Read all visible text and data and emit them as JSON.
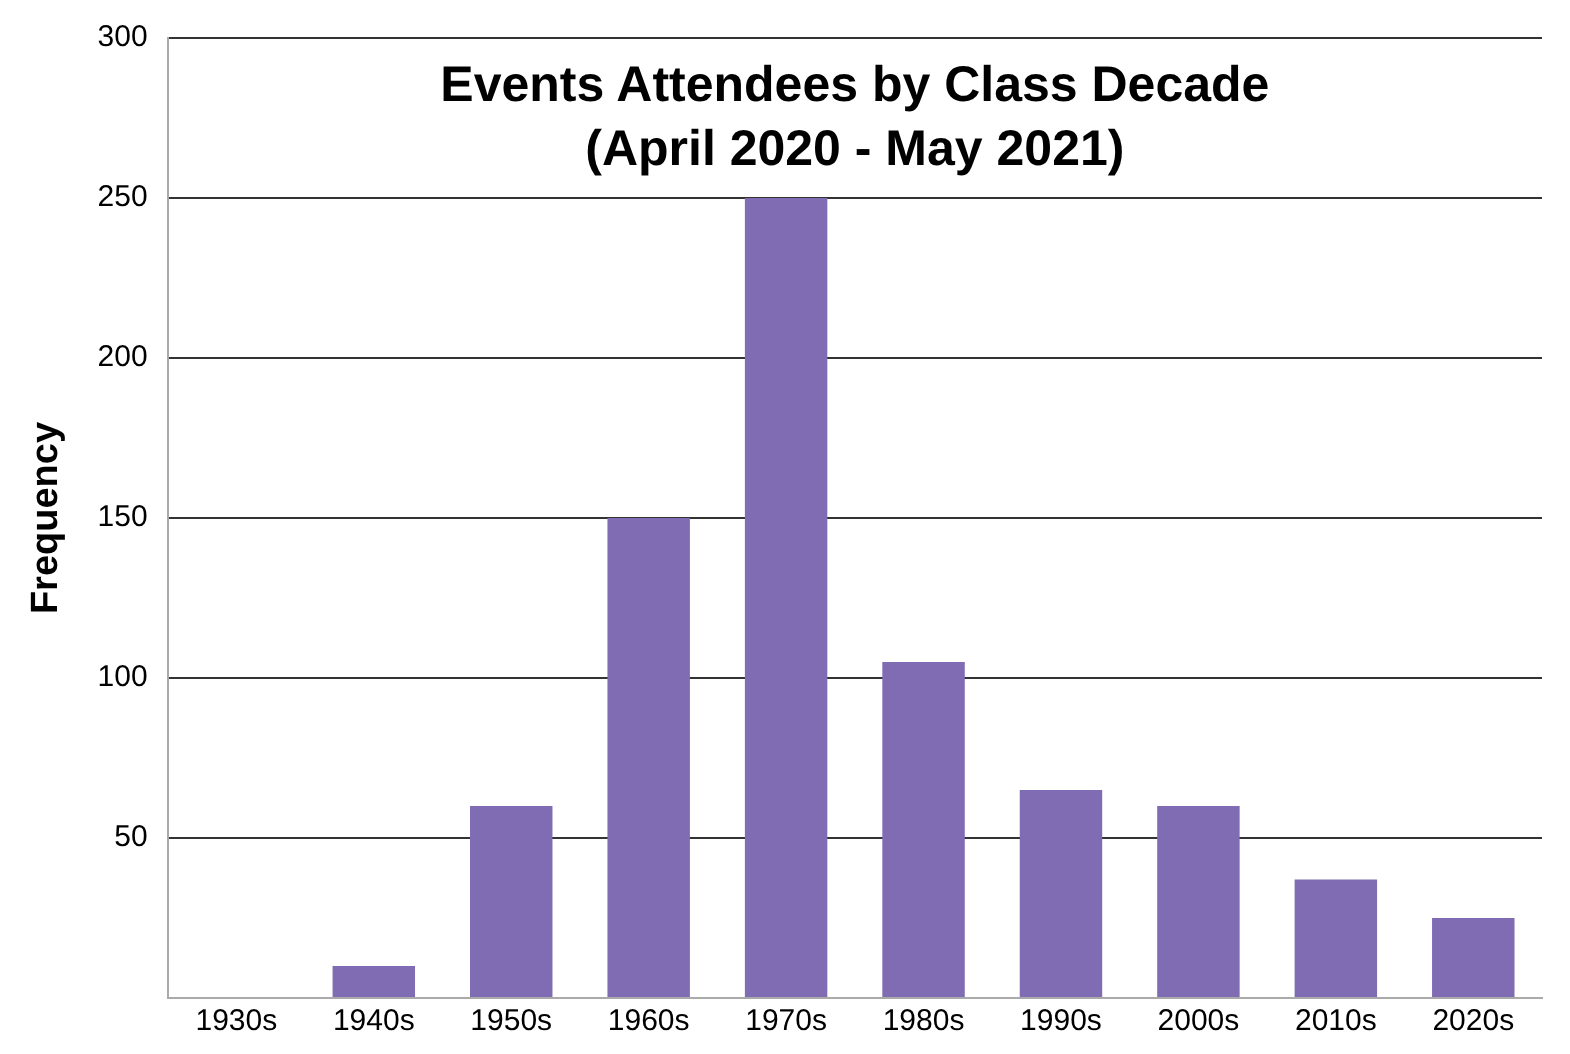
{
  "chart_data": {
    "type": "bar",
    "title": "Events Attendees by Class Decade\n(April 2020 - May 2021)",
    "ylabel": "Frequency",
    "categories": [
      "1930s",
      "1940s",
      "1950s",
      "1960s",
      "1970s",
      "1980s",
      "1990s",
      "2000s",
      "2010s",
      "2020s"
    ],
    "values": [
      0,
      10,
      60,
      150,
      250,
      105,
      65,
      60,
      37,
      25
    ],
    "color": "#806cb2",
    "ylim": [
      0,
      300
    ],
    "yticks": [
      {
        "value": 0,
        "label": null
      },
      50,
      100,
      150,
      200,
      250,
      300
    ],
    "grid": "y"
  }
}
